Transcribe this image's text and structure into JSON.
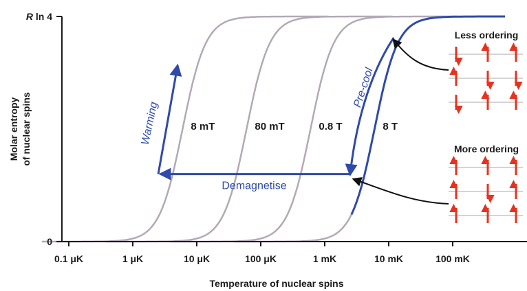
{
  "chart_data": {
    "type": "line",
    "xscale": "log",
    "xlabel": "Temperature of nuclear spins",
    "ylabel_line1": "Molar entropy",
    "ylabel_line2": "of nuclear spins",
    "x_ticks": [
      {
        "value": 1e-07,
        "label": "0.1 μK"
      },
      {
        "value": 1e-06,
        "label": "1 μK"
      },
      {
        "value": 1e-05,
        "label": "10 μK"
      },
      {
        "value": 0.0001,
        "label": "100 μK"
      },
      {
        "value": 0.001,
        "label": "1 mK"
      },
      {
        "value": 0.01,
        "label": "10 mK"
      },
      {
        "value": 0.1,
        "label": "100 mK"
      }
    ],
    "y_ticks": [
      {
        "value": 0,
        "label": "0"
      },
      {
        "value": 1,
        "label": "R ln 4"
      }
    ],
    "ylim": [
      0,
      1
    ],
    "series": [
      {
        "name": "8 mT",
        "midpoint_K": 6e-06,
        "color": "#b3a9b6"
      },
      {
        "name": "80 mT",
        "midpoint_K": 6e-05,
        "color": "#b3a9b6"
      },
      {
        "name": "0.8 T",
        "midpoint_K": 0.0006,
        "color": "#b3a9b6"
      },
      {
        "name": "8 T",
        "midpoint_K": 0.006,
        "color": "#2f4aa8"
      }
    ],
    "processes": [
      {
        "label": "Pre-cool",
        "from": {
          "x": 0.012,
          "y": 0.9
        },
        "to": {
          "x": 0.0025,
          "y": 0.3
        }
      },
      {
        "label": "Demagnetise",
        "from": {
          "x": 0.0025,
          "y": 0.3
        },
        "to": {
          "x": 2.5e-06,
          "y": 0.3
        }
      },
      {
        "label": "Warming",
        "from": {
          "x": 2.5e-06,
          "y": 0.3
        },
        "to": {
          "x": 5e-06,
          "y": 0.78
        }
      }
    ],
    "process_color": "#2f4aa8",
    "legend": {
      "less_ordering": {
        "title": "Less ordering",
        "rows": [
          [
            "down",
            "up",
            "up"
          ],
          [
            "up",
            "down",
            "down"
          ],
          [
            "down",
            "up",
            "up"
          ]
        ]
      },
      "more_ordering": {
        "title": "More ordering",
        "rows": [
          [
            "up",
            "up",
            "up"
          ],
          [
            "up",
            "down",
            "up"
          ],
          [
            "up",
            "up",
            "up"
          ]
        ]
      },
      "arrow_color": "#e8321e"
    }
  }
}
